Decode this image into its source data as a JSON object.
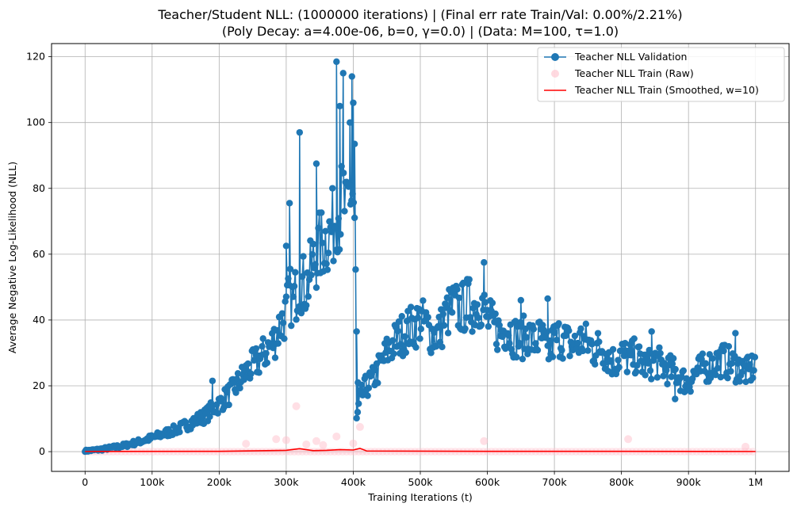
{
  "chart_data": {
    "type": "line",
    "title_line1": "Teacher/Student NLL: (1000000 iterations) |  (Final err rate Train/Val: 0.00%/2.21%)",
    "title_line2": "(Poly Decay: a=4.00e-06, b=0, γ=0.0) | (Data: M=100, τ=1.0)",
    "xlabel": "Training Iterations (t)",
    "ylabel": "Average Negative Log-Likelihood (NLL)",
    "xlim": [
      -50000,
      1050000
    ],
    "ylim": [
      -6,
      124
    ],
    "x_ticks": [
      0,
      100000,
      200000,
      300000,
      400000,
      500000,
      600000,
      700000,
      800000,
      900000,
      1000000
    ],
    "x_tick_labels": [
      "0",
      "100k",
      "200k",
      "300k",
      "400k",
      "500k",
      "600k",
      "700k",
      "800k",
      "900k",
      "1M"
    ],
    "y_ticks": [
      0,
      20,
      40,
      60,
      80,
      100,
      120
    ],
    "y_tick_labels": [
      "0",
      "20",
      "40",
      "60",
      "80",
      "100",
      "120"
    ],
    "grid": true,
    "legend_position": "top-right",
    "series": [
      {
        "name": "Teacher NLL Validation",
        "style": "line-marker",
        "color": "#1f77b4",
        "x": [
          0,
          20000,
          40000,
          60000,
          80000,
          100000,
          120000,
          140000,
          160000,
          180000,
          190000,
          200000,
          220000,
          240000,
          260000,
          280000,
          290000,
          300000,
          305000,
          310000,
          320000,
          330000,
          340000,
          350000,
          360000,
          370000,
          375000,
          380000,
          385000,
          390000,
          395000,
          400000,
          403000,
          405000,
          407000,
          410000,
          420000,
          430000,
          440000,
          450000,
          460000,
          470000,
          480000,
          490000,
          500000,
          510000,
          520000,
          530000,
          540000,
          550000,
          560000,
          570000,
          580000,
          590000,
          595000,
          600000,
          610000,
          620000,
          630000,
          640000,
          650000,
          660000,
          670000,
          680000,
          690000,
          700000,
          710000,
          720000,
          730000,
          740000,
          750000,
          760000,
          770000,
          780000,
          790000,
          800000,
          810000,
          820000,
          830000,
          840000,
          850000,
          860000,
          870000,
          880000,
          890000,
          900000,
          910000,
          920000,
          930000,
          940000,
          950000,
          960000,
          970000,
          980000,
          990000,
          1000000
        ],
        "y": [
          0.2,
          0.6,
          1.2,
          1.9,
          3.0,
          4.2,
          5.6,
          7.0,
          9.0,
          11.0,
          13.0,
          14.5,
          18.5,
          24.0,
          28.0,
          33.0,
          38.0,
          42.0,
          48.0,
          45.0,
          52.0,
          50.0,
          57.0,
          62.0,
          65.0,
          68.0,
          75.0,
          72.0,
          78.0,
          70.0,
          80.0,
          78.0,
          65.0,
          9.5,
          12.0,
          16.0,
          20.0,
          22.0,
          26.0,
          30.0,
          33.0,
          35.0,
          37.0,
          38.0,
          40.0,
          38.0,
          35.0,
          37.0,
          42.0,
          44.0,
          43.0,
          45.0,
          44.0,
          46.0,
          43.0,
          40.0,
          38.0,
          36.0,
          38.0,
          35.0,
          34.0,
          36.0,
          33.0,
          35.0,
          30.0,
          34.0,
          35.0,
          33.0,
          32.0,
          34.0,
          33.0,
          31.0,
          32.0,
          29.0,
          27.0,
          30.0,
          28.0,
          29.0,
          27.0,
          26.0,
          28.0,
          26.0,
          25.0,
          24.0,
          22.0,
          21.0,
          24.0,
          25.0,
          26.0,
          27.0,
          28.0,
          27.0,
          26.0,
          25.0,
          24.0,
          27.0
        ],
        "spikes": [
          [
            190000,
            21.5
          ],
          [
            300000,
            62.5
          ],
          [
            305000,
            75.5
          ],
          [
            320000,
            97.0
          ],
          [
            345000,
            87.5
          ],
          [
            375000,
            118.5
          ],
          [
            380000,
            105.0
          ],
          [
            385000,
            115.0
          ],
          [
            395000,
            100.0
          ],
          [
            398000,
            114.0
          ],
          [
            400000,
            106.0
          ],
          [
            402000,
            93.5
          ],
          [
            405000,
            36.5
          ],
          [
            407000,
            21.0
          ],
          [
            595000,
            57.5
          ],
          [
            650000,
            46.0
          ],
          [
            690000,
            46.5
          ],
          [
            845000,
            36.5
          ],
          [
            970000,
            36.0
          ],
          [
            880000,
            16.0
          ]
        ]
      },
      {
        "name": "Teacher NLL Train (Raw)",
        "style": "marker",
        "color": "#ffc0cb",
        "x": [
          240000,
          285000,
          300000,
          315000,
          330000,
          345000,
          355000,
          375000,
          400000,
          410000,
          595000,
          810000,
          985000
        ],
        "y": [
          2.4,
          3.8,
          3.5,
          13.8,
          2.2,
          3.2,
          2.0,
          4.6,
          2.5,
          7.5,
          3.2,
          3.8,
          1.5
        ],
        "baseline": 0
      },
      {
        "name": "Teacher NLL Train (Smoothed, w=10)",
        "style": "line",
        "color": "#ff0000",
        "x": [
          0,
          200000,
          300000,
          320000,
          340000,
          360000,
          380000,
          400000,
          410000,
          420000,
          600000,
          800000,
          1000000
        ],
        "y": [
          0.05,
          0.1,
          0.4,
          0.9,
          0.3,
          0.4,
          0.6,
          0.5,
          1.0,
          0.2,
          0.1,
          0.1,
          0.05
        ]
      }
    ]
  }
}
